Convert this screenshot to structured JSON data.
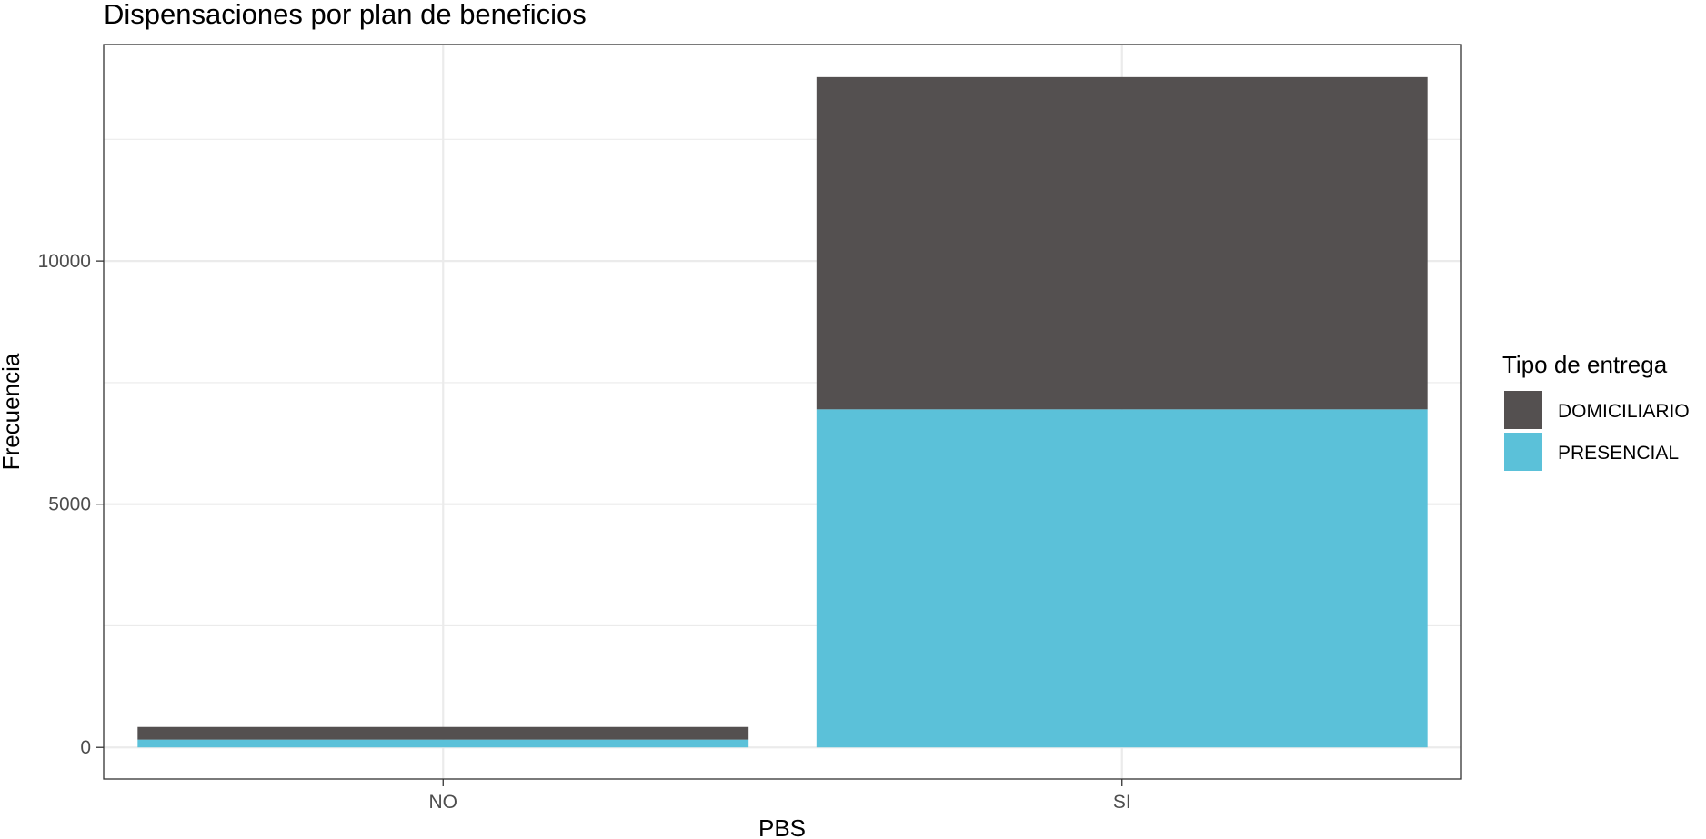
{
  "chart_data": {
    "type": "bar",
    "stacked": true,
    "title": "Dispensaciones por plan de beneficios",
    "xlabel": "PBS",
    "ylabel": "Frecuencia",
    "categories": [
      "NO",
      "SI"
    ],
    "series": [
      {
        "name": "DOMICILIARIO",
        "color": "#545050",
        "values": [
          260,
          6830
        ]
      },
      {
        "name": "PRESENCIAL",
        "color": "#5bc1d9",
        "values": [
          160,
          6950
        ]
      }
    ],
    "ylim": [
      -650,
      14450
    ],
    "yticks": [
      0,
      5000,
      10000
    ],
    "grid": true,
    "legend": {
      "title": "Tipo de entrega",
      "position": "right"
    }
  }
}
